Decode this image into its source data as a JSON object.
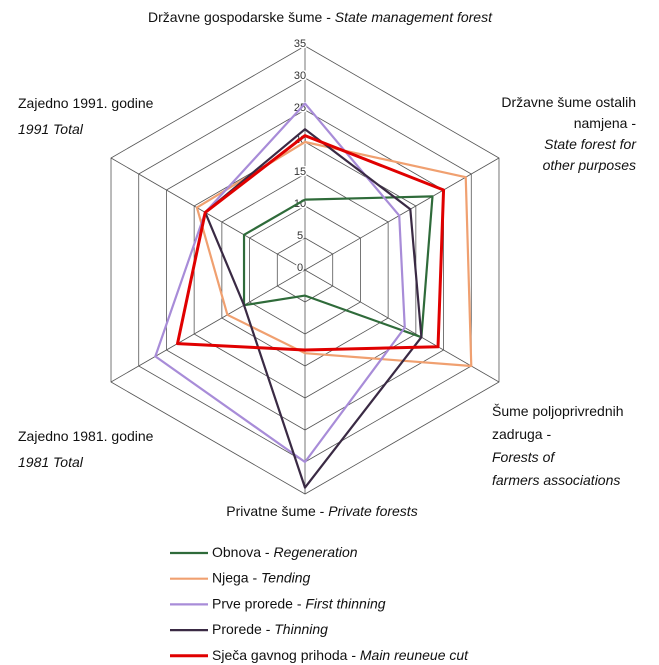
{
  "chart_data": {
    "type": "radar",
    "categories": [
      [
        [
          {
            "text": "Državne gospodarske šume - "
          },
          {
            "text": "State management forest",
            "italic": true
          }
        ]
      ],
      [
        [
          {
            "text": "Državne šume ostalih"
          }
        ],
        [
          {
            "text": "namjena -"
          }
        ],
        [
          {
            "text": "State forest for",
            "italic": true
          }
        ],
        [
          {
            "text": "other purposes",
            "italic": true
          }
        ]
      ],
      [
        [
          {
            "text": "Šume poljoprivrednih"
          }
        ],
        [
          {
            "text": "zadruga -"
          }
        ],
        [
          {
            "text": "Forests of",
            "italic": true
          }
        ],
        [
          {
            "text": "farmers associations",
            "italic": true
          }
        ]
      ],
      [
        [
          {
            "text": "Privatne šume - "
          },
          {
            "text": "Private forests",
            "italic": true
          }
        ]
      ],
      [
        [
          {
            "text": "Zajedno 1981. godine"
          }
        ],
        [
          {
            "text": "1981 Total",
            "italic": true
          }
        ]
      ],
      [
        [
          {
            "text": "Zajedno 1991. godine"
          }
        ],
        [
          {
            "text": "1991 Total",
            "italic": true
          }
        ]
      ]
    ],
    "ylim": [
      0,
      35
    ],
    "yticks": [
      0,
      5,
      10,
      15,
      20,
      25,
      30,
      35
    ],
    "grid": true,
    "series": [
      {
        "name": "Obnova - Regeneration",
        "color": "#2f6b3a",
        "values": [
          11,
          23,
          21,
          4,
          11,
          11
        ]
      },
      {
        "name": "Njega - Tending",
        "color": "#f0a070",
        "values": [
          20,
          29,
          30,
          13,
          14,
          19.5
        ]
      },
      {
        "name": "Prve prorede - First thinning",
        "color": "#a88cd8",
        "values": [
          26,
          17,
          18,
          30,
          27,
          18
        ]
      },
      {
        "name": "Prorede - Thinning",
        "color": "#3a2a44",
        "values": [
          22,
          19,
          21,
          34,
          11,
          18
        ]
      },
      {
        "name": "Sječa gavnog prihoda - Main reuneue cut",
        "color": "#e00000",
        "values": [
          21,
          25,
          24,
          12.5,
          23,
          18
        ]
      }
    ]
  }
}
